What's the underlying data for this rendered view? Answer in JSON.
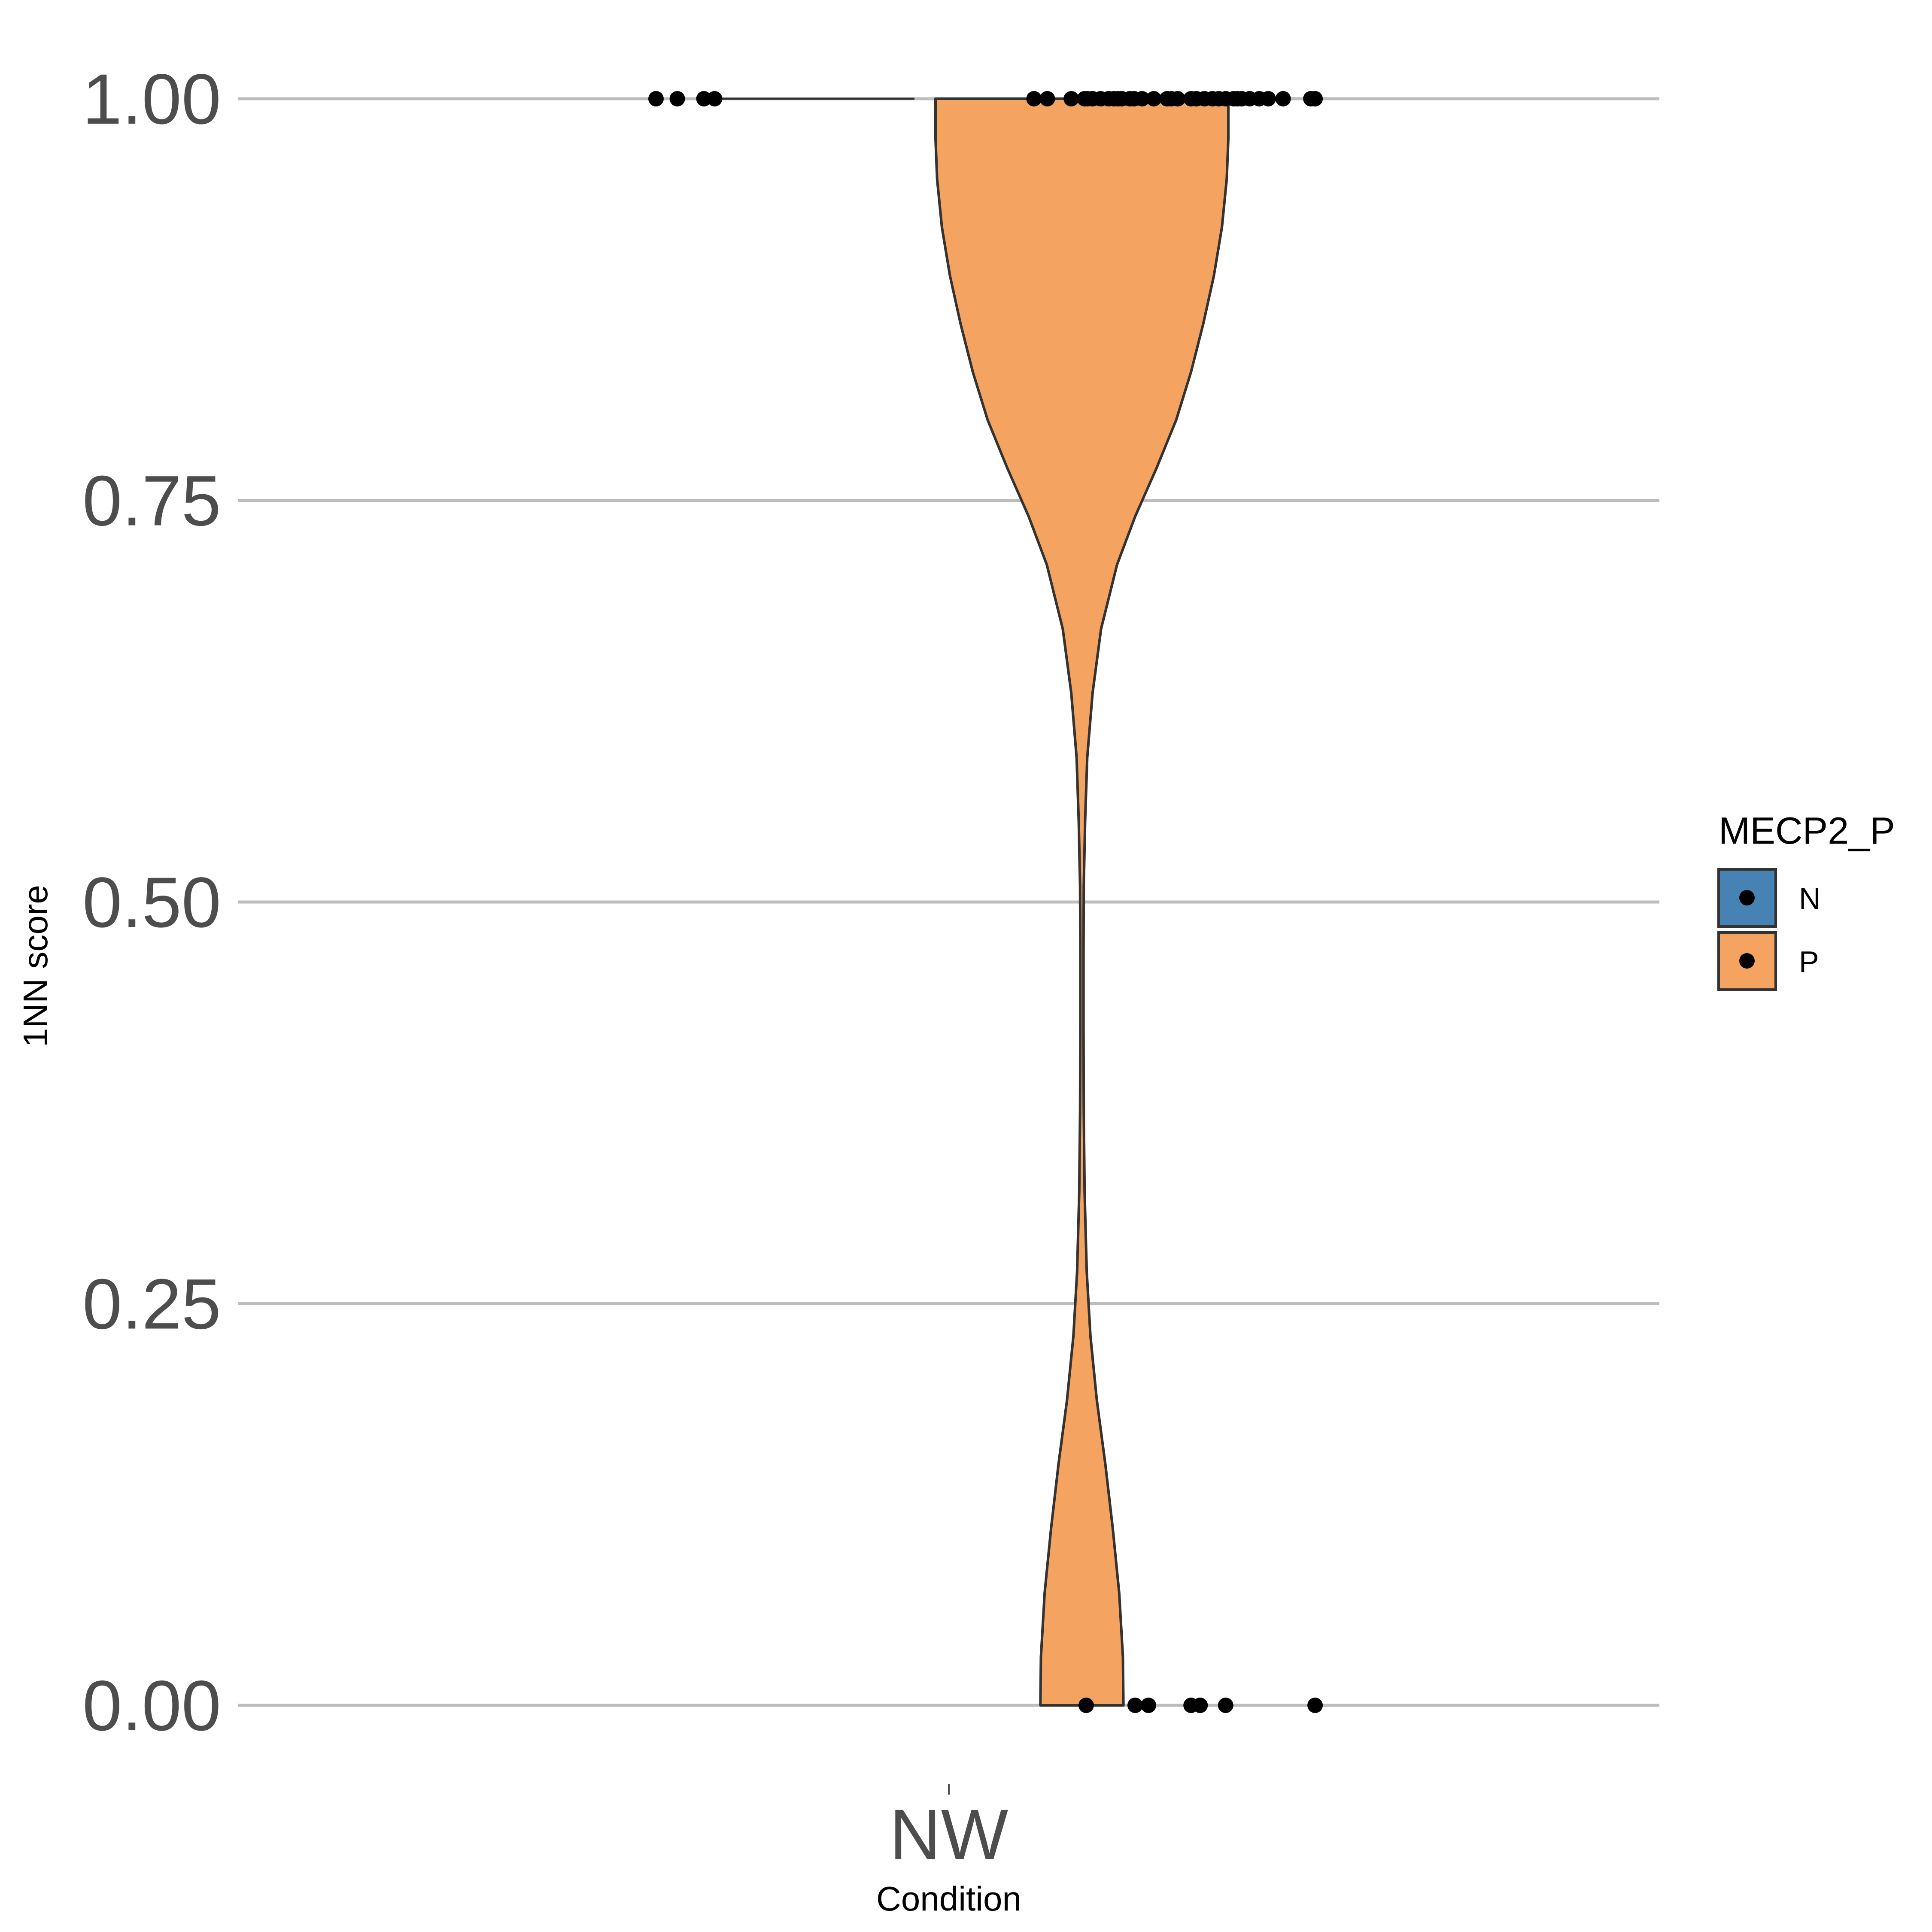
{
  "chart_data": {
    "type": "violin",
    "xlabel": "Condition",
    "ylabel": "1NN score",
    "categories": [
      "NW"
    ],
    "ylim": [
      0,
      1
    ],
    "y_ticks": [
      "0.00",
      "0.25",
      "0.50",
      "0.75",
      "1.00"
    ],
    "y_tick_values": [
      0,
      0.25,
      0.5,
      0.75,
      1.0
    ],
    "grid": true,
    "legend": {
      "title": "MECP2_P",
      "placement": "right",
      "entries": [
        {
          "label": "N",
          "color": "#4682b4"
        },
        {
          "label": "P",
          "color": "#f4a460"
        }
      ]
    },
    "series": [
      {
        "name": "N",
        "color": "#4682b4",
        "outline": "#333333",
        "density": [
          {
            "y": 0.0,
            "w": 0.0
          },
          {
            "y": 0.995,
            "w": 0.0
          },
          {
            "y": 1.0,
            "w": 0.0
          }
        ],
        "points": [
          {
            "dx": -0.3,
            "y": 1.0
          },
          {
            "dx": -0.26,
            "y": 1.0
          },
          {
            "dx": -0.21,
            "y": 1.0
          },
          {
            "dx": -0.19,
            "y": 1.0
          }
        ]
      },
      {
        "name": "P",
        "color": "#f4a460",
        "outline": "#333333",
        "density": [
          {
            "y": 0.0,
            "w": 0.078
          },
          {
            "y": 0.03,
            "w": 0.077
          },
          {
            "y": 0.07,
            "w": 0.07
          },
          {
            "y": 0.11,
            "w": 0.058
          },
          {
            "y": 0.15,
            "w": 0.044
          },
          {
            "y": 0.19,
            "w": 0.028
          },
          {
            "y": 0.23,
            "w": 0.016
          },
          {
            "y": 0.27,
            "w": 0.009
          },
          {
            "y": 0.32,
            "w": 0.005
          },
          {
            "y": 0.37,
            "w": 0.0035
          },
          {
            "y": 0.42,
            "w": 0.003
          },
          {
            "y": 0.47,
            "w": 0.003
          },
          {
            "y": 0.51,
            "w": 0.0035
          },
          {
            "y": 0.55,
            "w": 0.006
          },
          {
            "y": 0.59,
            "w": 0.01
          },
          {
            "y": 0.63,
            "w": 0.02
          },
          {
            "y": 0.67,
            "w": 0.036
          },
          {
            "y": 0.71,
            "w": 0.066
          },
          {
            "y": 0.74,
            "w": 0.1
          },
          {
            "y": 0.77,
            "w": 0.14
          },
          {
            "y": 0.8,
            "w": 0.177
          },
          {
            "y": 0.83,
            "w": 0.205
          },
          {
            "y": 0.86,
            "w": 0.228
          },
          {
            "y": 0.89,
            "w": 0.248
          },
          {
            "y": 0.92,
            "w": 0.263
          },
          {
            "y": 0.95,
            "w": 0.272
          },
          {
            "y": 0.975,
            "w": 0.275
          },
          {
            "y": 1.0,
            "w": 0.275
          }
        ],
        "points": [
          {
            "dx": -0.09,
            "y": 1.0
          },
          {
            "dx": -0.065,
            "y": 1.0
          },
          {
            "dx": -0.02,
            "y": 1.0
          },
          {
            "dx": 0.005,
            "y": 1.0
          },
          {
            "dx": 0.01,
            "y": 1.0
          },
          {
            "dx": 0.02,
            "y": 1.0
          },
          {
            "dx": 0.035,
            "y": 1.0
          },
          {
            "dx": 0.05,
            "y": 1.0
          },
          {
            "dx": 0.06,
            "y": 1.0
          },
          {
            "dx": 0.068,
            "y": 1.0
          },
          {
            "dx": 0.075,
            "y": 1.0
          },
          {
            "dx": 0.09,
            "y": 1.0
          },
          {
            "dx": 0.098,
            "y": 1.0
          },
          {
            "dx": 0.113,
            "y": 1.0
          },
          {
            "dx": 0.135,
            "y": 1.0
          },
          {
            "dx": 0.16,
            "y": 1.0
          },
          {
            "dx": 0.168,
            "y": 1.0
          },
          {
            "dx": 0.18,
            "y": 1.0
          },
          {
            "dx": 0.205,
            "y": 1.0
          },
          {
            "dx": 0.215,
            "y": 1.0
          },
          {
            "dx": 0.23,
            "y": 1.0
          },
          {
            "dx": 0.245,
            "y": 1.0
          },
          {
            "dx": 0.257,
            "y": 1.0
          },
          {
            "dx": 0.27,
            "y": 1.0
          },
          {
            "dx": 0.285,
            "y": 1.0
          },
          {
            "dx": 0.292,
            "y": 1.0
          },
          {
            "dx": 0.3,
            "y": 1.0
          },
          {
            "dx": 0.315,
            "y": 1.0
          },
          {
            "dx": 0.333,
            "y": 1.0
          },
          {
            "dx": 0.35,
            "y": 1.0
          },
          {
            "dx": 0.378,
            "y": 1.0
          },
          {
            "dx": 0.43,
            "y": 1.0
          },
          {
            "dx": 0.438,
            "y": 1.0
          },
          {
            "dx": 0.008,
            "y": 0.0
          },
          {
            "dx": 0.1,
            "y": 0.0
          },
          {
            "dx": 0.125,
            "y": 0.0
          },
          {
            "dx": 0.205,
            "y": 0.0
          },
          {
            "dx": 0.222,
            "y": 0.0
          },
          {
            "dx": 0.27,
            "y": 0.0
          },
          {
            "dx": 0.438,
            "y": 0.0
          }
        ]
      }
    ]
  }
}
